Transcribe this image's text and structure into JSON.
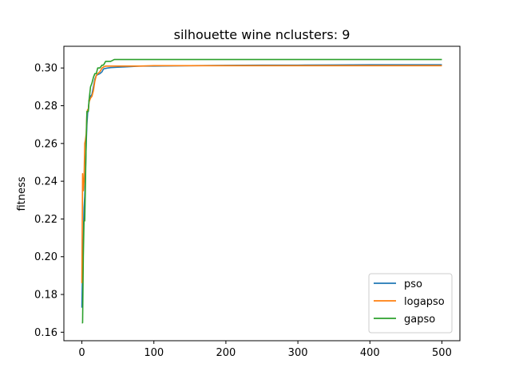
{
  "chart_data": {
    "type": "line",
    "title": "silhouette wine nclusters: 9",
    "xlabel": "",
    "ylabel": "fitness",
    "xlim": [
      -25,
      525
    ],
    "ylim": [
      0.1555,
      0.3115
    ],
    "xticks": [
      0,
      100,
      200,
      300,
      400,
      500
    ],
    "yticks": [
      0.16,
      0.18,
      0.2,
      0.22,
      0.24,
      0.26,
      0.28,
      0.3
    ],
    "ytick_labels": [
      "0.16",
      "0.18",
      "0.20",
      "0.22",
      "0.24",
      "0.26",
      "0.28",
      "0.30"
    ],
    "grid": false,
    "legend_position": "lower-right",
    "series": [
      {
        "name": "pso",
        "color": "#1f77b4",
        "x": [
          0,
          1,
          2,
          3,
          4,
          5,
          6,
          7,
          8,
          9,
          10,
          12,
          14,
          16,
          18,
          20,
          22,
          25,
          28,
          30,
          33,
          36,
          40,
          50,
          60,
          80,
          100,
          150,
          200,
          250,
          300,
          350,
          400,
          450,
          500
        ],
        "y": [
          0.173,
          0.195,
          0.21,
          0.226,
          0.232,
          0.245,
          0.26,
          0.27,
          0.276,
          0.278,
          0.283,
          0.285,
          0.286,
          0.29,
          0.294,
          0.296,
          0.2965,
          0.297,
          0.298,
          0.2995,
          0.2998,
          0.3,
          0.3002,
          0.3004,
          0.3006,
          0.301,
          0.301,
          0.3012,
          0.3014,
          0.3015,
          0.3015,
          0.3016,
          0.3017,
          0.3017,
          0.3017
        ]
      },
      {
        "name": "logapso",
        "color": "#ff7f0e",
        "x": [
          0,
          1,
          2,
          3,
          4,
          5,
          6,
          7,
          8,
          9,
          10,
          12,
          14,
          16,
          18,
          20,
          22,
          25,
          28,
          30,
          33,
          40,
          50,
          60,
          80,
          100,
          150,
          200,
          300,
          400,
          500
        ],
        "y": [
          0.186,
          0.244,
          0.235,
          0.24,
          0.26,
          0.262,
          0.265,
          0.276,
          0.278,
          0.278,
          0.282,
          0.284,
          0.285,
          0.288,
          0.293,
          0.296,
          0.297,
          0.298,
          0.3,
          0.3005,
          0.301,
          0.301,
          0.301,
          0.301,
          0.301,
          0.3012,
          0.3012,
          0.3012,
          0.3012,
          0.3012,
          0.3012
        ]
      },
      {
        "name": "gapso",
        "color": "#2ca02c",
        "x": [
          0,
          1,
          2,
          3,
          4,
          5,
          6,
          7,
          8,
          9,
          10,
          12,
          14,
          16,
          18,
          20,
          22,
          25,
          28,
          30,
          33,
          36,
          40,
          45,
          50,
          60,
          80,
          100,
          150,
          200,
          300,
          400,
          500
        ],
        "y": [
          0.165,
          0.165,
          0.2,
          0.219,
          0.219,
          0.24,
          0.262,
          0.277,
          0.277,
          0.277,
          0.283,
          0.29,
          0.292,
          0.295,
          0.297,
          0.297,
          0.3,
          0.3,
          0.3015,
          0.3015,
          0.3035,
          0.3035,
          0.3035,
          0.3045,
          0.3045,
          0.3045,
          0.3045,
          0.3045,
          0.3045,
          0.3045,
          0.3045,
          0.3045,
          0.3045
        ]
      }
    ]
  }
}
